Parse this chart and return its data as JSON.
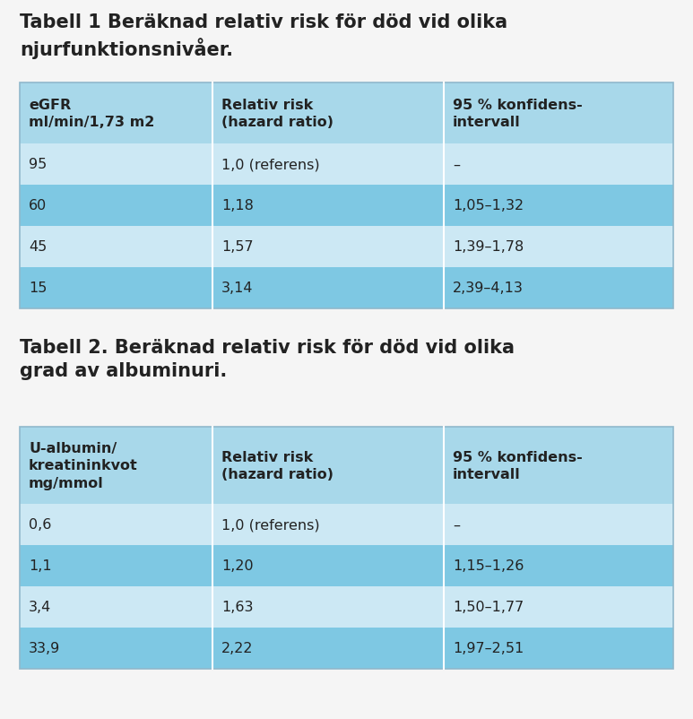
{
  "title1": "Tabell 1 Beräknad relativ risk för död vid olika\nnjurfunktionsnivåer.",
  "title2": "Tabell 2. Beräknad relativ risk för död vid olika\ngrad av albuminuri.",
  "table1_headers": [
    "eGFR\nml/min/1,73 m2",
    "Relativ risk\n(hazard ratio)",
    "95 % konfidens-\nintervall"
  ],
  "table1_rows": [
    [
      "95",
      "1,0 (referens)",
      "–"
    ],
    [
      "60",
      "1,18",
      "1,05–1,32"
    ],
    [
      "45",
      "1,57",
      "1,39–1,78"
    ],
    [
      "15",
      "3,14",
      "2,39–4,13"
    ]
  ],
  "table2_headers": [
    "U-albumin/\nkreatininkvot\nmg/mmol",
    "Relativ risk\n(hazard ratio)",
    "95 % konfidens-\nintervall"
  ],
  "table2_rows": [
    [
      "0,6",
      "1,0 (referens)",
      "–"
    ],
    [
      "1,1",
      "1,20",
      "1,15–1,26"
    ],
    [
      "3,4",
      "1,63",
      "1,50–1,77"
    ],
    [
      "33,9",
      "2,22",
      "1,97–2,51"
    ]
  ],
  "color_header": "#a8d8ea",
  "color_row_odd": "#cce8f4",
  "color_row_even": "#7ec8e3",
  "color_bg": "#f5f5f5",
  "title_fontsize": 15,
  "header_fontsize": 11.5,
  "cell_fontsize": 11.5,
  "text_color": "#222222"
}
